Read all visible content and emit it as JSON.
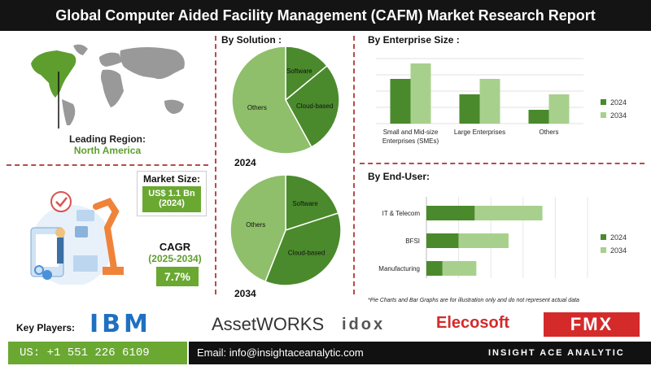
{
  "title": "Global Computer Aided Facility Management (CAFM) Market Research Report",
  "left": {
    "leading_region_label": "Leading Region:",
    "leading_region_value": "North America",
    "market_size_label": "Market Size:",
    "market_size_value": "US$ 1.1 Bn",
    "market_size_year": "(2024)",
    "cagr_label": "CAGR",
    "cagr_period": "(2025-2034)",
    "cagr_value": "7.7%"
  },
  "chart_data": [
    {
      "type": "pie",
      "title": "By Solution :",
      "subtitle": "2024",
      "categories": [
        "Software",
        "Cloud-based",
        "Others"
      ],
      "values": [
        14,
        28,
        58
      ]
    },
    {
      "type": "pie",
      "title": "",
      "subtitle": "2034",
      "categories": [
        "Software",
        "Cloud-based",
        "Others"
      ],
      "values": [
        20,
        36,
        44
      ]
    },
    {
      "type": "bar",
      "title": "By Enterprise Size :",
      "categories": [
        "Small and Mid-size Enterprises (SMEs)",
        "Large Enterprises",
        "Others"
      ],
      "series": [
        {
          "name": "2024",
          "values": [
            55,
            36,
            17
          ]
        },
        {
          "name": "2034",
          "values": [
            74,
            55,
            36
          ]
        }
      ],
      "legend": "right",
      "grid": true
    },
    {
      "type": "bar",
      "orientation": "horizontal",
      "stacked": true,
      "title": "By End-User:",
      "categories": [
        "IT & Telecom",
        "BFSI",
        "Manufacturing"
      ],
      "series": [
        {
          "name": "2024",
          "values": [
            30,
            20,
            10
          ]
        },
        {
          "name": "2034",
          "values": [
            42,
            31,
            21
          ]
        }
      ],
      "legend": "right",
      "grid": true
    }
  ],
  "note": "*Pie Charts and Bar Graphs are for illustration only and do not represent actual data",
  "key_players_label": "Key Players:",
  "players": [
    "IBM",
    "AssetWORKS",
    "idox",
    "Elecosoft",
    "FMX"
  ],
  "contact": {
    "phone": "US: +1 551 226 6109",
    "email": "Email: info@insightaceanalytic.com",
    "brand": "INSIGHT ACE ANALYTIC"
  },
  "colors": {
    "dark_green": "#4a8a2c",
    "mid_green": "#6aa832",
    "light_green": "#a8d08d",
    "pie_light": "#8fbf6a",
    "accent_red": "#b84a4a"
  }
}
